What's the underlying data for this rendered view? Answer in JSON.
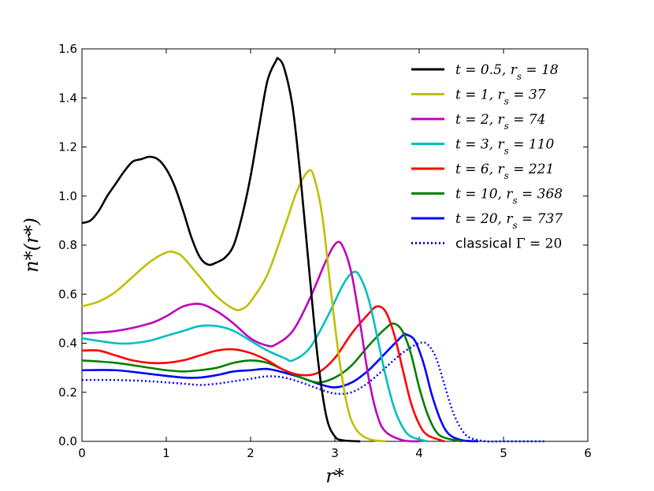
{
  "chart_data": {
    "type": "line",
    "xlabel": "r*",
    "ylabel": "n*(r*)",
    "xlim": [
      0,
      6
    ],
    "ylim": [
      0,
      1.6
    ],
    "x_ticks": [
      "0",
      "1",
      "2",
      "3",
      "4",
      "5",
      "6"
    ],
    "y_ticks": [
      "0.0",
      "0.2",
      "0.4",
      "0.6",
      "0.8",
      "1.0",
      "1.2",
      "1.4",
      "1.6"
    ],
    "grid": false,
    "legend_position": "top-right",
    "series": [
      {
        "name": "t = 0.5,  r_s = 18",
        "legend_main": "t = 0.5,  r",
        "legend_sub": "s",
        "legend_tail": " = 18",
        "color": "#000000",
        "style": "solid",
        "points": [
          [
            0,
            0.89
          ],
          [
            0.1,
            0.9
          ],
          [
            0.2,
            0.94
          ],
          [
            0.3,
            1.0
          ],
          [
            0.4,
            1.05
          ],
          [
            0.5,
            1.1
          ],
          [
            0.6,
            1.14
          ],
          [
            0.7,
            1.15
          ],
          [
            0.8,
            1.16
          ],
          [
            0.9,
            1.15
          ],
          [
            1.0,
            1.11
          ],
          [
            1.1,
            1.04
          ],
          [
            1.2,
            0.94
          ],
          [
            1.3,
            0.83
          ],
          [
            1.4,
            0.75
          ],
          [
            1.5,
            0.72
          ],
          [
            1.6,
            0.73
          ],
          [
            1.7,
            0.75
          ],
          [
            1.8,
            0.8
          ],
          [
            1.9,
            0.92
          ],
          [
            2.0,
            1.08
          ],
          [
            2.1,
            1.28
          ],
          [
            2.2,
            1.47
          ],
          [
            2.3,
            1.55
          ],
          [
            2.33,
            1.56
          ],
          [
            2.4,
            1.52
          ],
          [
            2.5,
            1.36
          ],
          [
            2.6,
            1.05
          ],
          [
            2.7,
            0.68
          ],
          [
            2.8,
            0.33
          ],
          [
            2.9,
            0.1
          ],
          [
            3.0,
            0.02
          ],
          [
            3.1,
            0.004
          ],
          [
            3.3,
            0.0
          ]
        ]
      },
      {
        "name": "t = 1,  r_s = 37",
        "legend_main": "t = 1,  r",
        "legend_sub": "s",
        "legend_tail": " = 37",
        "color": "#bfbf00",
        "style": "solid",
        "points": [
          [
            0,
            0.55
          ],
          [
            0.2,
            0.57
          ],
          [
            0.4,
            0.61
          ],
          [
            0.6,
            0.67
          ],
          [
            0.8,
            0.73
          ],
          [
            1.0,
            0.77
          ],
          [
            1.1,
            0.77
          ],
          [
            1.2,
            0.75
          ],
          [
            1.4,
            0.67
          ],
          [
            1.6,
            0.59
          ],
          [
            1.8,
            0.54
          ],
          [
            1.9,
            0.54
          ],
          [
            2.0,
            0.57
          ],
          [
            2.2,
            0.68
          ],
          [
            2.4,
            0.87
          ],
          [
            2.55,
            1.02
          ],
          [
            2.68,
            1.1
          ],
          [
            2.75,
            1.08
          ],
          [
            2.85,
            0.92
          ],
          [
            2.95,
            0.62
          ],
          [
            3.05,
            0.34
          ],
          [
            3.15,
            0.14
          ],
          [
            3.25,
            0.05
          ],
          [
            3.4,
            0.01
          ],
          [
            3.6,
            0.0
          ]
        ]
      },
      {
        "name": "t = 2,  r_s = 74",
        "legend_main": "t = 2,  r",
        "legend_sub": "s",
        "legend_tail": " = 74",
        "color": "#bf00bf",
        "style": "solid",
        "points": [
          [
            0,
            0.44
          ],
          [
            0.4,
            0.45
          ],
          [
            0.8,
            0.48
          ],
          [
            1.0,
            0.51
          ],
          [
            1.2,
            0.55
          ],
          [
            1.4,
            0.56
          ],
          [
            1.6,
            0.53
          ],
          [
            1.8,
            0.48
          ],
          [
            2.0,
            0.42
          ],
          [
            2.2,
            0.39
          ],
          [
            2.3,
            0.395
          ],
          [
            2.5,
            0.45
          ],
          [
            2.7,
            0.58
          ],
          [
            2.9,
            0.74
          ],
          [
            3.02,
            0.81
          ],
          [
            3.1,
            0.79
          ],
          [
            3.2,
            0.68
          ],
          [
            3.3,
            0.48
          ],
          [
            3.4,
            0.26
          ],
          [
            3.5,
            0.11
          ],
          [
            3.6,
            0.04
          ],
          [
            3.8,
            0.005
          ],
          [
            4.0,
            0.0
          ]
        ]
      },
      {
        "name": "t = 3,  r_s = 110",
        "legend_main": "t = 3,  r",
        "legend_sub": "s",
        "legend_tail": " = 110",
        "color": "#00bfbf",
        "style": "solid",
        "points": [
          [
            0,
            0.42
          ],
          [
            0.4,
            0.4
          ],
          [
            0.6,
            0.4
          ],
          [
            0.8,
            0.41
          ],
          [
            1.0,
            0.43
          ],
          [
            1.2,
            0.45
          ],
          [
            1.4,
            0.47
          ],
          [
            1.6,
            0.47
          ],
          [
            1.8,
            0.45
          ],
          [
            2.0,
            0.41
          ],
          [
            2.2,
            0.37
          ],
          [
            2.4,
            0.34
          ],
          [
            2.5,
            0.33
          ],
          [
            2.7,
            0.38
          ],
          [
            2.9,
            0.5
          ],
          [
            3.1,
            0.64
          ],
          [
            3.22,
            0.69
          ],
          [
            3.3,
            0.67
          ],
          [
            3.4,
            0.58
          ],
          [
            3.5,
            0.43
          ],
          [
            3.6,
            0.27
          ],
          [
            3.7,
            0.14
          ],
          [
            3.8,
            0.06
          ],
          [
            3.9,
            0.02
          ],
          [
            4.1,
            0.0
          ]
        ]
      },
      {
        "name": "t = 6,  r_s = 221",
        "legend_main": "t = 6,  r",
        "legend_sub": "s",
        "legend_tail": " = 221",
        "color": "#ff0000",
        "style": "solid",
        "points": [
          [
            0,
            0.37
          ],
          [
            0.2,
            0.37
          ],
          [
            0.4,
            0.35
          ],
          [
            0.6,
            0.33
          ],
          [
            0.8,
            0.32
          ],
          [
            1.0,
            0.32
          ],
          [
            1.2,
            0.33
          ],
          [
            1.4,
            0.35
          ],
          [
            1.6,
            0.37
          ],
          [
            1.8,
            0.375
          ],
          [
            2.0,
            0.36
          ],
          [
            2.2,
            0.33
          ],
          [
            2.4,
            0.29
          ],
          [
            2.6,
            0.27
          ],
          [
            2.8,
            0.28
          ],
          [
            3.0,
            0.34
          ],
          [
            3.2,
            0.44
          ],
          [
            3.4,
            0.52
          ],
          [
            3.5,
            0.55
          ],
          [
            3.6,
            0.53
          ],
          [
            3.7,
            0.44
          ],
          [
            3.8,
            0.3
          ],
          [
            3.9,
            0.16
          ],
          [
            4.0,
            0.07
          ],
          [
            4.1,
            0.025
          ],
          [
            4.3,
            0.0
          ]
        ]
      },
      {
        "name": "t = 10,  r_s = 368",
        "legend_main": "t = 10,  r",
        "legend_sub": "s",
        "legend_tail": " = 368",
        "color": "#008000",
        "style": "solid",
        "points": [
          [
            0,
            0.33
          ],
          [
            0.4,
            0.32
          ],
          [
            0.8,
            0.3
          ],
          [
            1.0,
            0.29
          ],
          [
            1.2,
            0.285
          ],
          [
            1.4,
            0.29
          ],
          [
            1.6,
            0.3
          ],
          [
            1.8,
            0.32
          ],
          [
            2.0,
            0.33
          ],
          [
            2.2,
            0.32
          ],
          [
            2.4,
            0.29
          ],
          [
            2.6,
            0.26
          ],
          [
            2.8,
            0.24
          ],
          [
            3.0,
            0.26
          ],
          [
            3.2,
            0.31
          ],
          [
            3.4,
            0.39
          ],
          [
            3.6,
            0.46
          ],
          [
            3.7,
            0.48
          ],
          [
            3.8,
            0.45
          ],
          [
            3.9,
            0.36
          ],
          [
            4.0,
            0.22
          ],
          [
            4.1,
            0.11
          ],
          [
            4.2,
            0.04
          ],
          [
            4.3,
            0.015
          ],
          [
            4.5,
            0.0
          ]
        ]
      },
      {
        "name": "t = 20,  r_s = 737",
        "legend_main": "t = 20,  r",
        "legend_sub": "s",
        "legend_tail": " = 737",
        "color": "#0000ff",
        "style": "solid",
        "points": [
          [
            0,
            0.29
          ],
          [
            0.4,
            0.29
          ],
          [
            0.8,
            0.275
          ],
          [
            1.2,
            0.26
          ],
          [
            1.4,
            0.26
          ],
          [
            1.6,
            0.27
          ],
          [
            1.8,
            0.285
          ],
          [
            2.0,
            0.29
          ],
          [
            2.2,
            0.295
          ],
          [
            2.4,
            0.28
          ],
          [
            2.6,
            0.26
          ],
          [
            2.8,
            0.235
          ],
          [
            3.0,
            0.22
          ],
          [
            3.2,
            0.24
          ],
          [
            3.4,
            0.29
          ],
          [
            3.6,
            0.36
          ],
          [
            3.8,
            0.43
          ],
          [
            3.85,
            0.435
          ],
          [
            3.95,
            0.41
          ],
          [
            4.05,
            0.32
          ],
          [
            4.15,
            0.19
          ],
          [
            4.25,
            0.09
          ],
          [
            4.35,
            0.03
          ],
          [
            4.5,
            0.005
          ],
          [
            4.7,
            0.0
          ]
        ]
      },
      {
        "name": "classical Γ = 20",
        "legend_main": "classical",
        "legend_sub": "",
        "legend_tail": "Γ = 20",
        "color": "#0000ff",
        "style": "dotted",
        "points": [
          [
            0,
            0.25
          ],
          [
            0.4,
            0.25
          ],
          [
            0.8,
            0.245
          ],
          [
            1.2,
            0.235
          ],
          [
            1.4,
            0.23
          ],
          [
            1.6,
            0.235
          ],
          [
            1.8,
            0.245
          ],
          [
            2.0,
            0.255
          ],
          [
            2.2,
            0.265
          ],
          [
            2.4,
            0.26
          ],
          [
            2.6,
            0.24
          ],
          [
            2.8,
            0.215
          ],
          [
            3.0,
            0.195
          ],
          [
            3.2,
            0.2
          ],
          [
            3.4,
            0.24
          ],
          [
            3.6,
            0.3
          ],
          [
            3.8,
            0.36
          ],
          [
            4.0,
            0.4
          ],
          [
            4.1,
            0.395
          ],
          [
            4.2,
            0.34
          ],
          [
            4.3,
            0.23
          ],
          [
            4.4,
            0.12
          ],
          [
            4.5,
            0.05
          ],
          [
            4.6,
            0.015
          ],
          [
            4.8,
            0.0
          ],
          [
            5.0,
            0.0
          ],
          [
            5.5,
            0.0
          ]
        ]
      }
    ]
  }
}
